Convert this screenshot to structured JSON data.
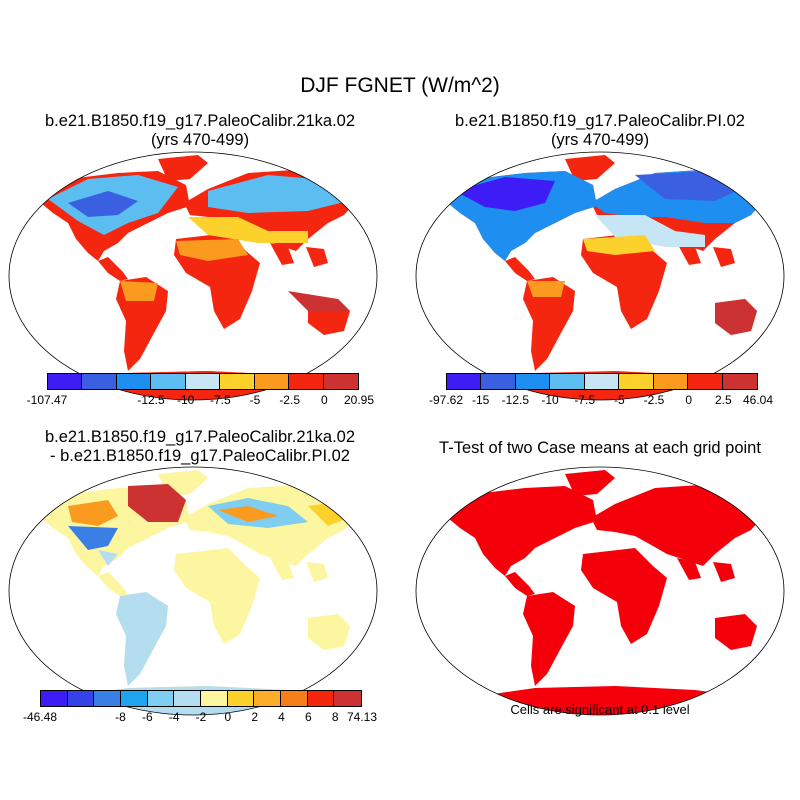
{
  "title": "DJF FGNET (W/m^2)",
  "panels": [
    {
      "title": "b.e21.B1850.f19_g17.PaleoCalibr.21ka.02",
      "subtitle": "(yrs 470-499)",
      "colorbar": {
        "colors": [
          "#3d1cf5",
          "#3a5fe0",
          "#1e8ff0",
          "#5cbef0",
          "#c6e6f5",
          "#fcd12c",
          "#fa9a1e",
          "#f5260f",
          "#cc3232"
        ],
        "ticks": [
          "-107.47",
          "-12.5",
          "-10",
          "-7.5",
          "-5",
          "-2.5",
          "0",
          "20.95"
        ]
      }
    },
    {
      "title": "b.e21.B1850.f19_g17.PaleoCalibr.PI.02",
      "subtitle": "(yrs 470-499)",
      "colorbar": {
        "colors": [
          "#3d1cf5",
          "#3a5fe0",
          "#1e8ff0",
          "#5cbef0",
          "#c6e6f5",
          "#fcd12c",
          "#fa9a1e",
          "#f5260f",
          "#cc3232"
        ],
        "ticks": [
          "-97.62",
          "-15",
          "-12.5",
          "-10",
          "-7.5",
          "-5",
          "-2.5",
          "0",
          "2.5",
          "46.04"
        ]
      }
    },
    {
      "title": "b.e21.B1850.f19_g17.PaleoCalibr.21ka.02",
      "subtitle": "- b.e21.B1850.f19_g17.PaleoCalibr.PI.02",
      "colorbar": {
        "colors": [
          "#3d1cf5",
          "#3443e8",
          "#3a7fe6",
          "#1ea5f0",
          "#7fcdf0",
          "#b5ddf0",
          "#fdf6a0",
          "#fcd12c",
          "#fcae2a",
          "#f77f1a",
          "#f5260f",
          "#cc3232"
        ],
        "ticks": [
          "-46.48",
          "-8",
          "-6",
          "-4",
          "-2",
          "0",
          "2",
          "4",
          "6",
          "8",
          "74.13"
        ]
      }
    },
    {
      "title": "T-Test of two Case means at each grid point",
      "note": "Cells are significant at 0.1 level"
    }
  ]
}
